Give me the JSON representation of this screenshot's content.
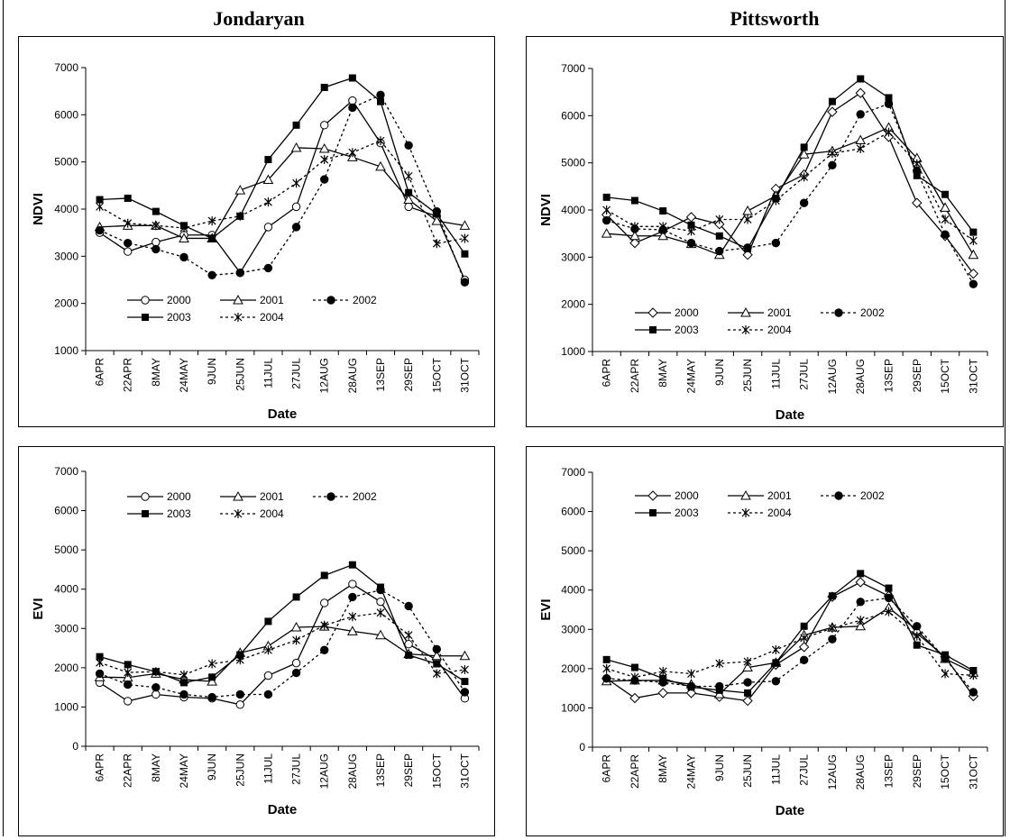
{
  "titles": {
    "left": "Jondaryan",
    "right": "Pittsworth"
  },
  "dates": [
    "6APR",
    "22APR",
    "8MAY",
    "24MAY",
    "9JUN",
    "25JUN",
    "11JUL",
    "27JUL",
    "12AUG",
    "28AUG",
    "13SEP",
    "29SEP",
    "15OCT",
    "31OCT"
  ],
  "chart_data": [
    {
      "type": "line",
      "title": "Jondaryan",
      "xlabel": "Date",
      "ylabel": "NDVI",
      "ylim": [
        1000,
        7000
      ],
      "yticks": [
        1000,
        2000,
        3000,
        4000,
        5000,
        6000,
        7000
      ],
      "legend": "inside, bottom-left",
      "series": [
        {
          "name": "2000",
          "values": [
            3500,
            3100,
            3300,
            3450,
            3450,
            2650,
            3620,
            4050,
            5780,
            6300,
            5400,
            4050,
            3850,
            2500
          ]
        },
        {
          "name": "2001",
          "values": [
            3620,
            3650,
            3650,
            3380,
            3380,
            4400,
            4620,
            5300,
            5280,
            5100,
            4900,
            4200,
            3750,
            3650
          ]
        },
        {
          "name": "2002",
          "values": [
            3550,
            3280,
            3150,
            2980,
            2600,
            2650,
            2750,
            3620,
            4630,
            6150,
            6420,
            5350,
            3950,
            2450
          ]
        },
        {
          "name": "2003",
          "values": [
            4200,
            4230,
            3950,
            3650,
            3380,
            3850,
            5050,
            5780,
            6580,
            6780,
            6280,
            4350,
            3900,
            3050
          ]
        },
        {
          "name": "2004",
          "values": [
            4050,
            3700,
            3650,
            3600,
            3750,
            3850,
            4150,
            4550,
            5050,
            5200,
            5450,
            4700,
            3270,
            3380
          ]
        }
      ]
    },
    {
      "type": "line",
      "title": "Pittsworth",
      "xlabel": "Date",
      "ylabel": "NDVI",
      "ylim": [
        1000,
        7000
      ],
      "yticks": [
        1000,
        2000,
        3000,
        4000,
        5000,
        6000,
        7000
      ],
      "legend": "inside, bottom-center",
      "series": [
        {
          "name": "2000",
          "values": [
            3900,
            3300,
            3550,
            3850,
            3700,
            3050,
            4450,
            4750,
            6080,
            6480,
            5550,
            4150,
            3450,
            2650
          ]
        },
        {
          "name": "2001",
          "values": [
            3500,
            3450,
            3450,
            3280,
            3050,
            3980,
            4300,
            5180,
            5250,
            5480,
            5750,
            5100,
            4050,
            3050
          ]
        },
        {
          "name": "2002",
          "values": [
            3780,
            3600,
            3580,
            3300,
            3130,
            3200,
            3300,
            4150,
            4950,
            6030,
            6250,
            4830,
            3480,
            2430
          ]
        },
        {
          "name": "2003",
          "values": [
            4270,
            4200,
            3980,
            3680,
            3450,
            3180,
            4250,
            5330,
            6300,
            6780,
            6380,
            4730,
            4330,
            3530
          ]
        },
        {
          "name": "2004",
          "values": [
            4000,
            3650,
            3650,
            3550,
            3800,
            3800,
            4200,
            4700,
            5200,
            5300,
            5650,
            4980,
            3800,
            3350
          ]
        }
      ]
    },
    {
      "type": "line",
      "title": "Jondaryan",
      "xlabel": "Date",
      "ylabel": "EVI",
      "ylim": [
        0,
        7000
      ],
      "yticks": [
        0,
        1000,
        2000,
        3000,
        4000,
        5000,
        6000,
        7000
      ],
      "legend": "inside, top-center",
      "series": [
        {
          "name": "2000",
          "values": [
            1620,
            1150,
            1320,
            1250,
            1220,
            1060,
            1800,
            2120,
            3650,
            4130,
            3680,
            2600,
            2200,
            1220
          ]
        },
        {
          "name": "2001",
          "values": [
            1760,
            1750,
            1850,
            1700,
            1650,
            2380,
            2550,
            3030,
            3050,
            2930,
            2830,
            2350,
            2300,
            2300
          ]
        },
        {
          "name": "2002",
          "values": [
            1850,
            1570,
            1500,
            1320,
            1250,
            1320,
            1320,
            1870,
            2450,
            3800,
            3980,
            3570,
            2470,
            1380
          ]
        },
        {
          "name": "2003",
          "values": [
            2280,
            2080,
            1900,
            1620,
            1760,
            2330,
            3180,
            3800,
            4350,
            4620,
            4050,
            2320,
            2100,
            1650
          ]
        },
        {
          "name": "2004",
          "values": [
            2130,
            1880,
            1900,
            1820,
            2100,
            2200,
            2450,
            2700,
            3080,
            3300,
            3400,
            2830,
            1850,
            1950
          ]
        }
      ]
    },
    {
      "type": "line",
      "title": "Pittsworth",
      "xlabel": "Date",
      "ylabel": "EVI",
      "ylim": [
        0,
        7000
      ],
      "yticks": [
        0,
        1000,
        2000,
        3000,
        4000,
        5000,
        6000,
        7000
      ],
      "legend": "inside, top-center",
      "series": [
        {
          "name": "2000",
          "values": [
            1750,
            1250,
            1380,
            1380,
            1280,
            1180,
            2100,
            2550,
            3830,
            4200,
            3850,
            2900,
            2300,
            1300
          ]
        },
        {
          "name": "2001",
          "values": [
            1680,
            1700,
            1700,
            1600,
            1350,
            2030,
            2150,
            2850,
            3050,
            3080,
            3550,
            2980,
            2250,
            1900
          ]
        },
        {
          "name": "2002",
          "values": [
            1750,
            1700,
            1650,
            1550,
            1550,
            1650,
            1680,
            2220,
            2750,
            3700,
            3800,
            3080,
            2250,
            1400
          ]
        },
        {
          "name": "2003",
          "values": [
            2230,
            2030,
            1750,
            1530,
            1450,
            1380,
            2150,
            3080,
            3850,
            4420,
            4050,
            2600,
            2350,
            1950
          ]
        },
        {
          "name": "2004",
          "values": [
            2000,
            1780,
            1930,
            1870,
            2130,
            2180,
            2480,
            2780,
            3030,
            3230,
            3450,
            2830,
            1870,
            1830
          ]
        }
      ]
    }
  ]
}
